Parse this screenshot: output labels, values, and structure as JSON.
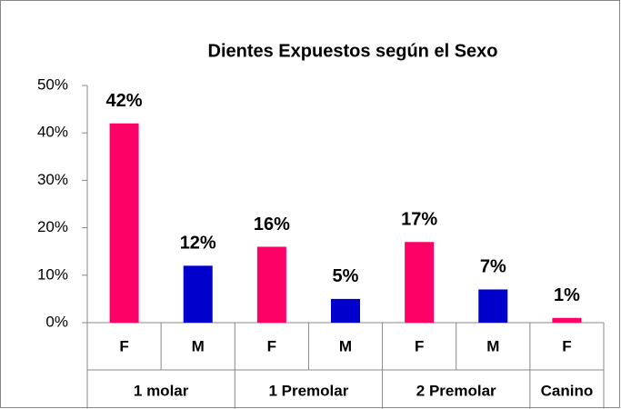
{
  "chart_data": {
    "type": "bar",
    "title": "Dientes Expuestos según el Sexo",
    "groups": [
      {
        "name": "1 molar",
        "categories": [
          "F",
          "M"
        ],
        "values": [
          42,
          12
        ],
        "value_labels": [
          "42%",
          "12%"
        ],
        "colors": [
          "#ff0066",
          "#0000cc"
        ]
      },
      {
        "name": "1 Premolar",
        "categories": [
          "F",
          "M"
        ],
        "values": [
          16,
          5
        ],
        "value_labels": [
          "16%",
          "5%"
        ],
        "colors": [
          "#ff0066",
          "#0000cc"
        ]
      },
      {
        "name": "2 Premolar",
        "categories": [
          "F",
          "M"
        ],
        "values": [
          17,
          7
        ],
        "value_labels": [
          "17%",
          "7%"
        ],
        "colors": [
          "#ff0066",
          "#0000cc"
        ]
      },
      {
        "name": "Canino",
        "categories": [
          "F"
        ],
        "values": [
          1
        ],
        "value_labels": [
          "1%"
        ],
        "colors": [
          "#ff0066"
        ]
      }
    ],
    "ylim": [
      0,
      50
    ],
    "yticks": [
      {
        "value": 0,
        "label": "0%"
      },
      {
        "value": 10,
        "label": "10%"
      },
      {
        "value": 20,
        "label": "20%"
      },
      {
        "value": 30,
        "label": "30%"
      },
      {
        "value": 40,
        "label": "40%"
      },
      {
        "value": 50,
        "label": "50%"
      }
    ],
    "grid": false
  }
}
